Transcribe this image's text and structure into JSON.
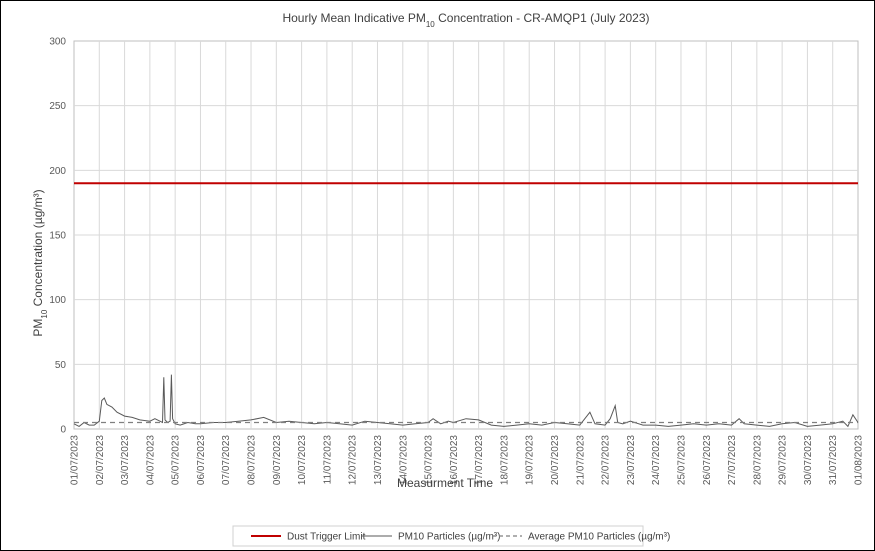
{
  "chart_data": {
    "type": "line",
    "title": "Hourly Mean Indicative PM10 Concentration - CR-AMQP1 (July 2023)",
    "title_parts": {
      "prefix": "Hourly Mean Indicative PM",
      "subscript": "10",
      "suffix": " Concentration - CR-AMQP1 (July 2023)"
    },
    "xlabel": "Measurment Time",
    "ylabel": "PM10 Concentration (µg/m³)",
    "ylabel_parts": {
      "prefix": "PM",
      "subscript": "10",
      "suffix": " Concentration (µg/m³)"
    },
    "ylim": [
      0,
      300
    ],
    "yticks": [
      0,
      50,
      100,
      150,
      200,
      250,
      300
    ],
    "xlim": [
      "01/07/2023",
      "01/08/2023"
    ],
    "xticks": [
      "01/07/2023",
      "02/07/2023",
      "03/07/2023",
      "04/07/2023",
      "05/07/2023",
      "06/07/2023",
      "07/07/2023",
      "08/07/2023",
      "09/07/2023",
      "10/07/2023",
      "11/07/2023",
      "12/07/2023",
      "13/07/2023",
      "14/07/2023",
      "15/07/2023",
      "16/07/2023",
      "17/07/2023",
      "18/07/2023",
      "19/07/2023",
      "20/07/2023",
      "21/07/2023",
      "22/07/2023",
      "23/07/2023",
      "24/07/2023",
      "25/07/2023",
      "26/07/2023",
      "27/07/2023",
      "28/07/2023",
      "29/07/2023",
      "30/07/2023",
      "31/07/2023",
      "01/08/2023"
    ],
    "grid": {
      "vertical": true,
      "horizontal": true
    },
    "legend_position": "bottom",
    "series": [
      {
        "name": "Dust Trigger Limit",
        "color": "#c00000",
        "style": "solid",
        "constant": 190
      },
      {
        "name": "PM10 Particles (µg/m³)",
        "color": "#595959",
        "style": "solid",
        "x_days": [
          0,
          0.2,
          0.4,
          0.6,
          0.8,
          1,
          1.1,
          1.2,
          1.3,
          1.5,
          1.7,
          2,
          2.3,
          2.6,
          3,
          3.2,
          3.4,
          3.5,
          3.55,
          3.6,
          3.7,
          3.8,
          3.85,
          3.9,
          4,
          4.2,
          4.5,
          4.8,
          5,
          5.5,
          6,
          6.5,
          7,
          7.5,
          8,
          8.5,
          9,
          9.5,
          10,
          10.5,
          11,
          11.5,
          12,
          12.5,
          13,
          13.5,
          14,
          14.2,
          14.5,
          14.8,
          15,
          15.5,
          16,
          16.5,
          17,
          17.5,
          18,
          18.5,
          19,
          19.5,
          20,
          20.4,
          20.6,
          21,
          21.2,
          21.4,
          21.5,
          21.7,
          22,
          22.5,
          23,
          23.5,
          24,
          24.5,
          25,
          25.5,
          26,
          26.3,
          26.5,
          27,
          27.5,
          28,
          28.5,
          29,
          29.5,
          30,
          30.4,
          30.6,
          30.8,
          31
        ],
        "values": [
          4,
          2,
          5,
          3,
          3,
          6,
          22,
          24,
          19,
          17,
          13,
          10,
          9,
          7,
          6,
          8,
          6,
          5,
          40,
          7,
          5,
          6,
          42,
          8,
          4,
          3,
          5,
          4,
          4,
          5,
          5,
          6,
          7,
          9,
          5,
          6,
          5,
          4,
          5,
          4,
          3,
          6,
          5,
          4,
          3,
          4,
          5,
          8,
          4,
          6,
          5,
          8,
          7,
          3,
          2,
          3,
          4,
          3,
          5,
          4,
          3,
          13,
          4,
          3,
          8,
          18,
          5,
          4,
          6,
          3,
          3,
          2,
          3,
          4,
          3,
          4,
          3,
          8,
          4,
          3,
          2,
          4,
          5,
          2,
          3,
          4,
          6,
          2,
          11,
          5
        ]
      },
      {
        "name": "Average PM10 Particles (µg/m³)",
        "color": "#7f7f7f",
        "style": "dashed",
        "constant": 5
      }
    ]
  }
}
